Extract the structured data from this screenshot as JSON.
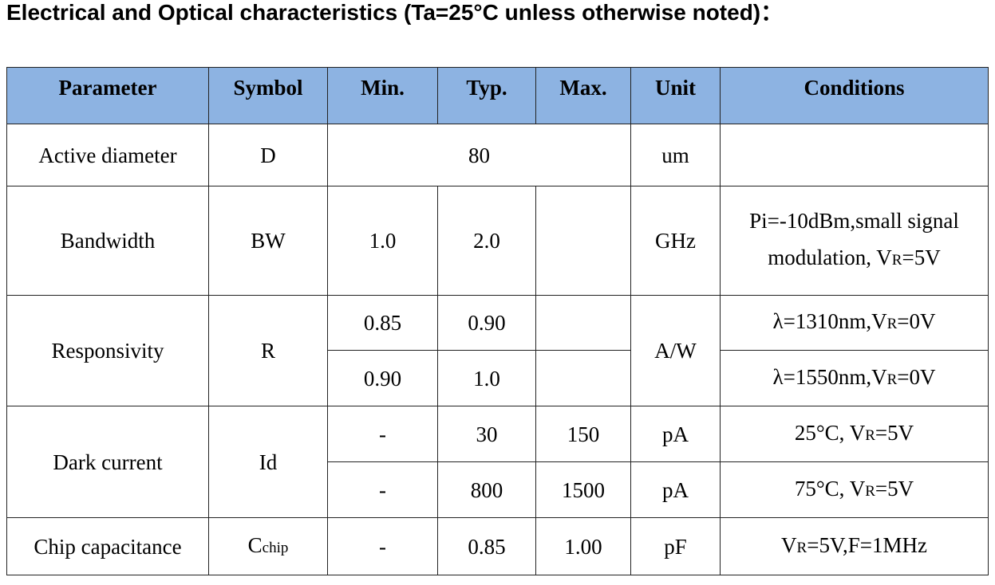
{
  "title": "Electrical and Optical characteristics (Ta=25°C unless otherwise noted)：",
  "header_color": "#8DB3E2",
  "headers": [
    "Parameter",
    "Symbol",
    "Min.",
    "Typ.",
    "Max.",
    "Unit",
    "Conditions"
  ],
  "rows": {
    "active": {
      "param": "Active diameter",
      "symbol": "D",
      "typ": "80",
      "unit": "um",
      "cond": ""
    },
    "bw": {
      "param": "Bandwidth",
      "symbol": "BW",
      "min": "1.0",
      "typ": "2.0",
      "max": "",
      "unit": "GHz",
      "cond_line1": "Pi=-10dBm,small signal",
      "cond_pre": "modulation, V",
      "cond_sub": "R",
      "cond_post": "=5V"
    },
    "resp": {
      "param": "Responsivity",
      "symbol": "R",
      "unit": "A/W",
      "r1": {
        "min": "0.85",
        "typ": "0.90",
        "max": "",
        "cond_pre": "λ=1310nm,V",
        "cond_sub": "R",
        "cond_post": "=0V"
      },
      "r2": {
        "min": "0.90",
        "typ": "1.0",
        "max": "",
        "cond_pre": "λ=1550nm,V",
        "cond_sub": "R",
        "cond_post": "=0V"
      }
    },
    "dark": {
      "param": "Dark current",
      "symbol": "Id",
      "r1": {
        "min": "-",
        "typ": "30",
        "max": "150",
        "unit": "pA",
        "cond_pre": "25°C, V",
        "cond_sub": "R",
        "cond_post": "=5V"
      },
      "r2": {
        "min": "-",
        "typ": "800",
        "max": "1500",
        "unit": "pA",
        "cond_pre": "75°C, V",
        "cond_sub": "R",
        "cond_post": "=5V"
      }
    },
    "cap": {
      "param": "Chip capacitance",
      "symbol_main": "C",
      "symbol_sub": "chip",
      "min": "-",
      "typ": "0.85",
      "max": "1.00",
      "unit": "pF",
      "cond_pre": "V",
      "cond_sub": "R",
      "cond_post": "=5V,F=1MHz"
    }
  }
}
